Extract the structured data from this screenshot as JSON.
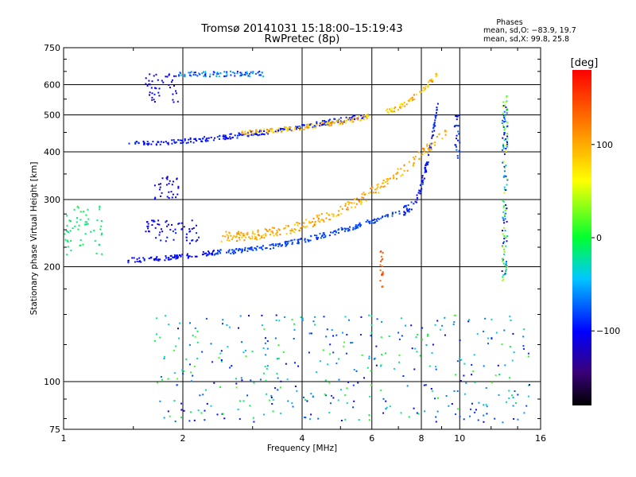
{
  "header": {
    "title": "Tromsø 20141031 15:18:00–15:19:43",
    "subtitle": "RwPretec (8p)",
    "stats_title": "Phases",
    "stats_o": "mean, sd,O: −83.9, 19.7",
    "stats_x": "mean, sd,X:  99.8, 25.8"
  },
  "chart_data": {
    "type": "scatter",
    "xlabel": "Frequency [MHz]",
    "ylabel": "Stationary phase Virtual Height [km]",
    "x_scale": "log",
    "y_scale": "log",
    "xlim": [
      1,
      16
    ],
    "ylim": [
      75,
      750
    ],
    "xticks": [
      1,
      2,
      4,
      6,
      8,
      10,
      16
    ],
    "xtick_labels": [
      "1",
      "2",
      "4",
      "6",
      "8",
      "10",
      "16"
    ],
    "yticks": [
      75,
      100,
      200,
      300,
      400,
      500,
      600,
      750
    ],
    "ytick_labels": [
      "75",
      "100",
      "200",
      "300",
      "400",
      "500",
      "600",
      "750"
    ],
    "grid": true,
    "colorbar": {
      "label": "[deg]",
      "range": [
        -180,
        180
      ],
      "ticks": [
        -100,
        0,
        100
      ],
      "tick_labels": [
        "−100",
        "0",
        "100"
      ],
      "colormap": "rainbow"
    },
    "traces": [
      {
        "name": "E/F1 low trace",
        "x_range": [
          1.45,
          2.4
        ],
        "h": [
          208,
          218
        ],
        "phase": [
          -110,
          -90
        ]
      },
      {
        "name": "F low trace",
        "x_range": [
          2.4,
          7.2
        ],
        "h": [
          218,
          280
        ],
        "phase": [
          -90,
          -75
        ]
      },
      {
        "name": "F cusp",
        "x_range": [
          7.2,
          8.85
        ],
        "h": [
          280,
          560
        ],
        "phase": [
          -110,
          -80
        ]
      },
      {
        "name": "X-mode F trace",
        "x_range": [
          2.5,
          9.3
        ],
        "h": [
          240,
          460
        ],
        "phase": [
          80,
          120
        ]
      },
      {
        "name": "spread near 1 MHz",
        "x_range": [
          1.0,
          1.25
        ],
        "h": [
          215,
          290
        ],
        "phase": [
          -20,
          -5
        ]
      },
      {
        "name": "upper multi-hop trace",
        "x_range": [
          1.45,
          5.9
        ],
        "h": [
          420,
          500
        ],
        "phase": [
          -110,
          -85
        ]
      },
      {
        "name": "upper X trace",
        "x_range": [
          2.8,
          5.9
        ],
        "h": [
          450,
          495
        ],
        "phase": [
          60,
          120
        ]
      },
      {
        "name": "cluster 600 km",
        "x_range": [
          1.6,
          1.95
        ],
        "h": [
          540,
          650
        ],
        "phase": [
          -120,
          -95
        ]
      },
      {
        "name": "line 640 km",
        "x_range": [
          1.95,
          3.2
        ],
        "h": [
          630,
          650
        ],
        "phase": [
          -100,
          -40
        ]
      },
      {
        "name": "cluster 320 km",
        "x_range": [
          1.7,
          1.95
        ],
        "h": [
          300,
          345
        ],
        "phase": [
          -120,
          -100
        ]
      },
      {
        "name": "points 230-260 km",
        "x_range": [
          1.6,
          2.2
        ],
        "h": [
          230,
          265
        ],
        "phase": [
          -120,
          -90
        ]
      },
      {
        "name": "upper right points",
        "x_range": [
          6.5,
          8.8
        ],
        "h": [
          510,
          640
        ],
        "phase": [
          60,
          120
        ]
      },
      {
        "name": "vertical streak 6.3 MHz",
        "x_range": [
          6.3,
          6.4
        ],
        "h": [
          170,
          220
        ],
        "phase": [
          120,
          150
        ]
      },
      {
        "name": "vertical streak 9.8 MHz",
        "x_range": [
          9.7,
          10.0
        ],
        "h": [
          380,
          500
        ],
        "phase": [
          -110,
          -70
        ]
      },
      {
        "name": "vertical streak 13 MHz",
        "x_range": [
          12.8,
          13.2
        ],
        "h": [
          180,
          560
        ],
        "phase": [
          -130,
          60
        ]
      },
      {
        "name": "sparse points",
        "x_range": [
          1.7,
          15.0
        ],
        "h": [
          78,
          150
        ],
        "phase": [
          -120,
          20
        ]
      }
    ]
  }
}
